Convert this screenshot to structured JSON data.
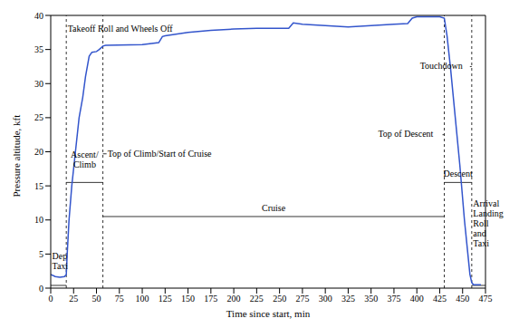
{
  "chart_data": {
    "type": "line",
    "x_label": "Time since start, min",
    "y_label": "Pressure altitude, kft",
    "xlim": [
      0,
      475
    ],
    "ylim": [
      0,
      40
    ],
    "xticks": [
      0,
      25,
      50,
      75,
      100,
      125,
      150,
      175,
      200,
      225,
      250,
      275,
      300,
      325,
      350,
      375,
      400,
      425,
      450,
      475
    ],
    "yticks": [
      0,
      5,
      10,
      15,
      20,
      25,
      30,
      35,
      40
    ],
    "grid": false,
    "color": "#3355cc",
    "x": [
      0,
      5,
      10,
      15,
      17,
      18,
      20,
      23,
      27,
      31,
      35,
      38,
      42,
      45,
      50,
      53,
      57,
      60,
      100,
      118,
      122,
      125,
      150,
      175,
      200,
      225,
      260,
      265,
      275,
      300,
      325,
      350,
      375,
      390,
      395,
      400,
      425,
      430,
      433,
      437,
      442,
      447,
      452,
      455,
      458,
      460,
      462,
      470
    ],
    "values": [
      2,
      1.7,
      1.6,
      1.7,
      2,
      5,
      10,
      15,
      20,
      25,
      28,
      31,
      34,
      34.6,
      34.7,
      35,
      35.5,
      35.6,
      35.7,
      36,
      36.9,
      37,
      37.5,
      37.8,
      38,
      38.1,
      38.1,
      38.9,
      38.7,
      38.5,
      38.3,
      38.5,
      38.7,
      38.8,
      39.6,
      39.8,
      39.8,
      39.6,
      37,
      32,
      25,
      18,
      10,
      6,
      2,
      0.8,
      0.5,
      0.5
    ],
    "events": [
      {
        "label": "Takeoff Roll and Wheels Off",
        "x": 17
      },
      {
        "label": "Top of Climb/Start of Cruise",
        "x": 57
      },
      {
        "label": "Top of Descent",
        "x": 430
      },
      {
        "label": "Touchdown",
        "x": 460
      }
    ],
    "phases": [
      {
        "label": "Dep Taxi",
        "start": 0,
        "end": 17
      },
      {
        "label": "Ascent/ Climb",
        "start": 17,
        "end": 57
      },
      {
        "label": "Cruise",
        "start": 57,
        "end": 430
      },
      {
        "label": "Descent",
        "start": 430,
        "end": 460
      },
      {
        "label": "Arrival Landing Roll and Taxi",
        "start": 460,
        "end": 475
      }
    ]
  }
}
